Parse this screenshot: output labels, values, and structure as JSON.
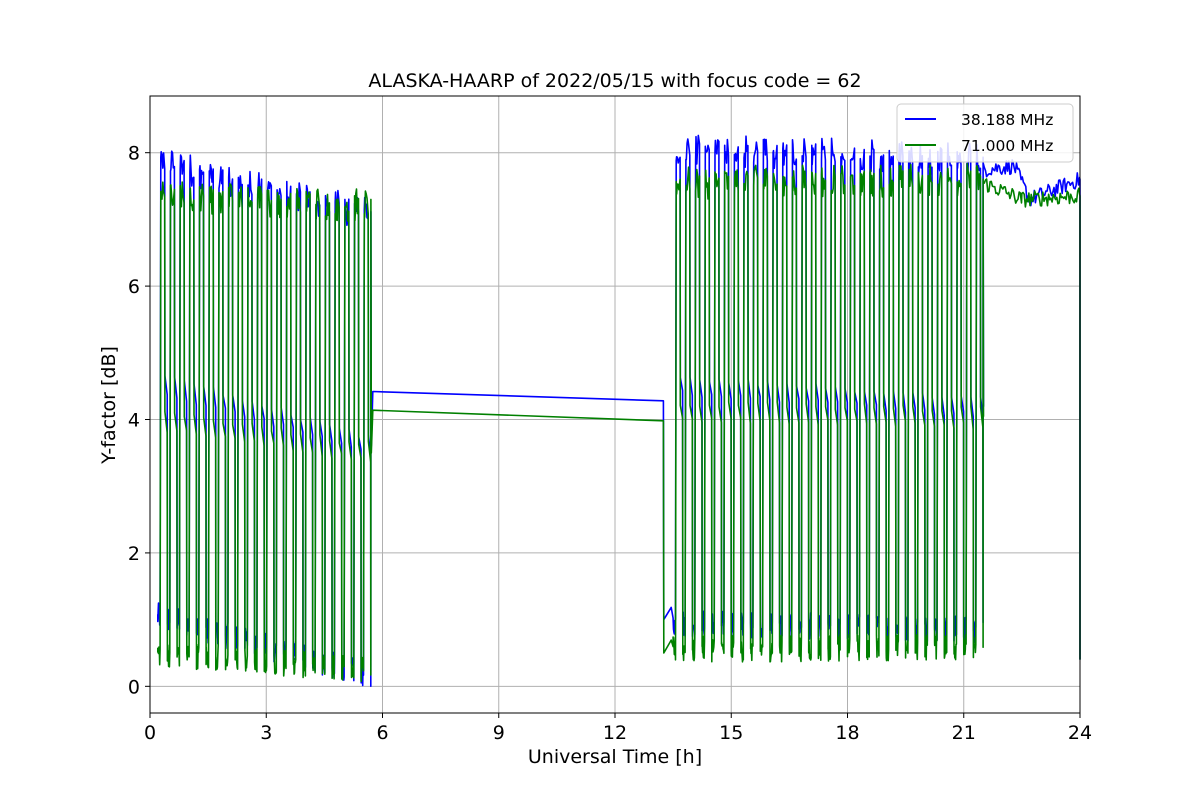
{
  "chart_data": {
    "type": "line",
    "title": "ALASKA-HAARP of 2022/05/15 with focus code = 62",
    "xlabel": "Universal Time [h]",
    "ylabel": "Y-factor [dB]",
    "xlim": [
      0,
      24
    ],
    "ylim": [
      -0.4,
      8.85
    ],
    "xticks": [
      0,
      3,
      6,
      9,
      12,
      15,
      18,
      21,
      24
    ],
    "yticks": [
      0,
      2,
      4,
      6,
      8
    ],
    "grid": true,
    "legend_position": "upper right",
    "series": [
      {
        "name": "38.188 MHz",
        "color": "#0000ff",
        "segments": [
          {
            "on": [
              0.2,
              5.7
            ],
            "high_start": 7.85,
            "high_end": 7.05,
            "low_start": 1.05,
            "low_end": 0.15,
            "mid_start": 4.55,
            "mid_end": 3.6
          },
          {
            "bridge": [
              [
                5.75,
                4.42
              ],
              [
                13.25,
                4.28
              ]
            ]
          },
          {
            "on": [
              13.5,
              21.5
            ],
            "high_start": 8.05,
            "high_end": 7.9,
            "low_start": 0.95,
            "low_end": 0.85,
            "mid_start": 4.55,
            "mid_end": 4.2
          },
          {
            "tail": [
              [
                21.5,
                7.75
              ],
              [
                22.3,
                7.8
              ],
              [
                22.7,
                7.3
              ],
              [
                24,
                7.6
              ]
            ]
          }
        ]
      },
      {
        "name": "71.000 MHz",
        "color": "#008000",
        "segments": [
          {
            "on": [
              0.2,
              5.7
            ],
            "high_start": 7.35,
            "high_end": 7.2,
            "low_start": 0.5,
            "low_end": 0.25,
            "mid_start": 4.0,
            "mid_end": 3.5
          },
          {
            "bridge": [
              [
                5.75,
                4.14
              ],
              [
                13.25,
                3.98
              ]
            ]
          },
          {
            "on": [
              13.5,
              21.5
            ],
            "high_start": 7.55,
            "high_end": 7.6,
            "low_start": 0.55,
            "low_end": 0.6,
            "mid_start": 4.15,
            "mid_end": 4.05
          },
          {
            "tail": [
              [
                21.5,
                7.55
              ],
              [
                22.5,
                7.3
              ],
              [
                24,
                7.35
              ]
            ]
          }
        ]
      }
    ]
  }
}
